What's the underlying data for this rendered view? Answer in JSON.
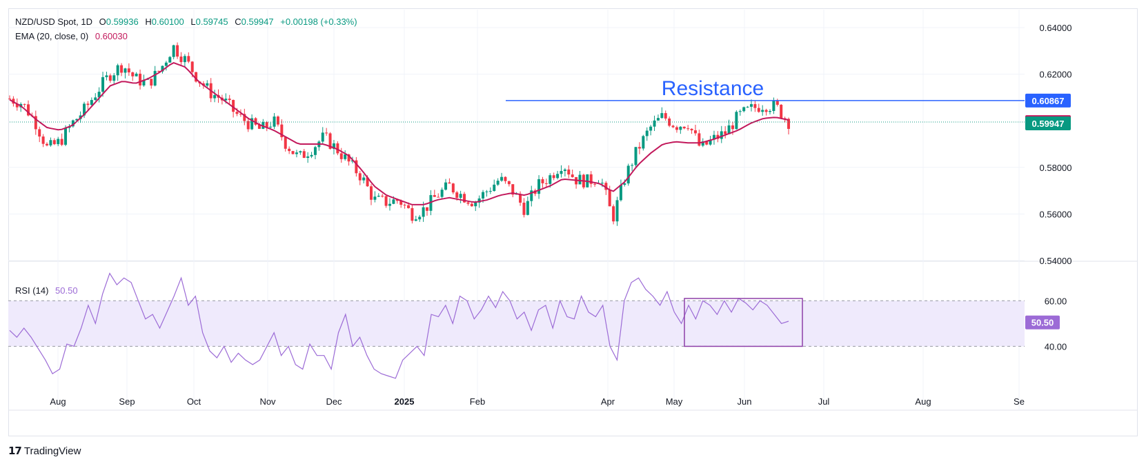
{
  "colors": {
    "up": "#089981",
    "down": "#f23645",
    "ema": "#c2185b",
    "resistance": "#2962ff",
    "rsi": "#9c6bd6",
    "rsi_band": "#efeafc",
    "grid": "#f0f3fa",
    "last_price": "#089981"
  },
  "header": {
    "symbol": "NZD/USD Spot, 1D",
    "open_label": "O",
    "open": "0.59936",
    "high_label": "H",
    "high": "0.60100",
    "low_label": "L",
    "low": "0.59745",
    "close_label": "C",
    "close": "0.59947",
    "change": "+0.00198 (+0.33%)",
    "ema_label": "EMA (20, close, 0)",
    "ema_value": "0.60030",
    "rsi_label": "RSI (14)",
    "rsi_value": "50.50"
  },
  "chart_data": [
    {
      "type": "candlestick",
      "title": "NZD/USD Spot, 1D",
      "ylim": [
        0.54,
        0.64
      ],
      "y_ticks": [
        "0.64000",
        "0.62000",
        "0.58000",
        "0.56000",
        "0.54000"
      ],
      "x_ticks": [
        "Aug",
        "Sep",
        "Oct",
        "Nov",
        "Dec",
        "2025",
        "Feb",
        "Apr",
        "May",
        "Jun",
        "Jul",
        "Aug",
        "Se"
      ],
      "close_path": [
        0.6095,
        0.6075,
        0.6,
        0.588,
        0.591,
        0.599,
        0.605,
        0.613,
        0.62,
        0.624,
        0.618,
        0.616,
        0.622,
        0.632,
        0.626,
        0.618,
        0.612,
        0.609,
        0.603,
        0.599,
        0.596,
        0.6,
        0.59,
        0.584,
        0.588,
        0.593,
        0.588,
        0.582,
        0.576,
        0.566,
        0.565,
        0.566,
        0.56,
        0.562,
        0.568,
        0.572,
        0.568,
        0.565,
        0.57,
        0.575,
        0.57,
        0.562,
        0.572,
        0.576,
        0.582,
        0.575,
        0.574,
        0.576,
        0.558,
        0.576,
        0.588,
        0.597,
        0.602,
        0.598,
        0.599,
        0.588,
        0.592,
        0.595,
        0.602,
        0.605,
        0.607,
        0.606,
        0.5995
      ],
      "ema_path": [
        0.609,
        0.606,
        0.601,
        0.597,
        0.596,
        0.598,
        0.603,
        0.609,
        0.615,
        0.617,
        0.616,
        0.618,
        0.621,
        0.625,
        0.623,
        0.617,
        0.613,
        0.609,
        0.605,
        0.601,
        0.598,
        0.596,
        0.593,
        0.59,
        0.59,
        0.59,
        0.588,
        0.585,
        0.579,
        0.572,
        0.568,
        0.566,
        0.564,
        0.564,
        0.566,
        0.567,
        0.566,
        0.565,
        0.566,
        0.568,
        0.569,
        0.568,
        0.57,
        0.572,
        0.575,
        0.5745,
        0.574,
        0.573,
        0.5695,
        0.574,
        0.581,
        0.586,
        0.59,
        0.591,
        0.5905,
        0.5905,
        0.592,
        0.594,
        0.596,
        0.599,
        0.601,
        0.6015,
        0.6003
      ],
      "resistance": {
        "label": "Resistance",
        "value": 0.60867,
        "value_label": "0.60867"
      },
      "ema_tag": {
        "value": 0.6003,
        "label": "0.60030"
      },
      "last_price": {
        "value": 0.59947,
        "label": "0.59947"
      }
    },
    {
      "type": "line",
      "title": "RSI (14)",
      "ylim": [
        22,
        77
      ],
      "y_ticks": [
        "60.00",
        "40.00"
      ],
      "band": [
        40,
        60
      ],
      "value_tag": {
        "value": 50.5,
        "label": "50.50"
      },
      "values": [
        47,
        44,
        48,
        44,
        39,
        34,
        28,
        30,
        41,
        40,
        48,
        58,
        50,
        63,
        72,
        67,
        70,
        68,
        60,
        52,
        54,
        48,
        55,
        62,
        70,
        58,
        62,
        46,
        38,
        35,
        40,
        33,
        37,
        34,
        32,
        34,
        40,
        46,
        36,
        40,
        32,
        30,
        41,
        36,
        36,
        30,
        46,
        54,
        40,
        44,
        36,
        30,
        28,
        27,
        26,
        34,
        37,
        40,
        36,
        54,
        53,
        58,
        50,
        62,
        60,
        52,
        56,
        62,
        57,
        64,
        60,
        52,
        55,
        47,
        56,
        58,
        48,
        60,
        53,
        52,
        62,
        55,
        53,
        58,
        40,
        34,
        60,
        68,
        70,
        65,
        62,
        58,
        64,
        55,
        50,
        58,
        52,
        60,
        58,
        54,
        60,
        55,
        61,
        59,
        56,
        60,
        58,
        54,
        50,
        51
      ],
      "box_range": [
        40,
        61
      ]
    }
  ],
  "branding": {
    "name": "TradingView"
  }
}
